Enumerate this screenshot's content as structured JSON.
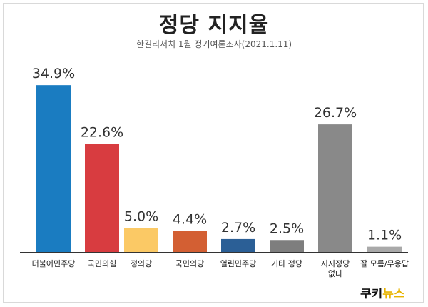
{
  "chart_data": {
    "type": "bar",
    "title": "정당 지지율",
    "subtitle": "한길리서치 1월 정기여론조사(2021.1.11)",
    "unit": "%",
    "categories": [
      "더불어민주당",
      "국민의힘",
      "정의당",
      "국민의당",
      "열린민주당",
      "기타 정당",
      "지지정당 없다",
      "잘 모름/무응답"
    ],
    "category_lines": [
      [
        "더불어민주당"
      ],
      [
        "국민의힘"
      ],
      [
        "정의당"
      ],
      [
        "국민의당"
      ],
      [
        "열린민주당"
      ],
      [
        "기타 정당"
      ],
      [
        "지지정당",
        "없다"
      ],
      [
        "잘 모름/무응답"
      ]
    ],
    "values": [
      34.9,
      22.6,
      5.0,
      4.4,
      2.7,
      2.5,
      26.7,
      1.1
    ],
    "value_labels": [
      "34.9%",
      "22.6%",
      "5.0%",
      "4.4%",
      "2.7%",
      "2.5%",
      "26.7%",
      "1.1%"
    ],
    "colors": [
      "#1a7cc1",
      "#d83c40",
      "#fbc965",
      "#d35f33",
      "#2b5f96",
      "#7e7e7e",
      "#898989",
      "#a9a9a9"
    ],
    "ylim": [
      0,
      40
    ],
    "grid": false,
    "legend": "none"
  },
  "branding": {
    "logo_left": "쿠키",
    "logo_right": "뉴스"
  }
}
